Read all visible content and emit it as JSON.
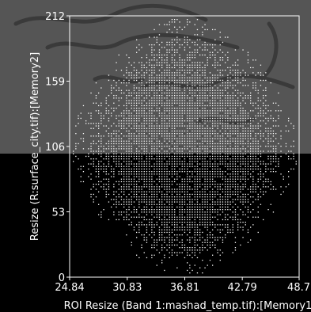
{
  "chart_data": {
    "type": "scatter",
    "xlabel": "ROI Resize (Band 1:mashad_temp.tif):[Memory1]",
    "ylabel": "Resize (R:surface_city.tif):[Memory2]",
    "x_ticks": [
      "24.84",
      "30.83",
      "36.81",
      "42.79",
      "48.7"
    ],
    "y_ticks": [
      "212",
      "159",
      "106",
      "53",
      "0"
    ],
    "xlim": [
      24.84,
      48.7
    ],
    "ylim": [
      0,
      212
    ],
    "grid": false,
    "point_color": "#ffffff",
    "background_color": "#000000",
    "overlay_background": "decorative Persian calligraphy watermark in upper half (#555555)",
    "description_of_points": "dense dot cloud forming a rounded diamond/oval shape centered near x≈36.8, y≈106"
  }
}
